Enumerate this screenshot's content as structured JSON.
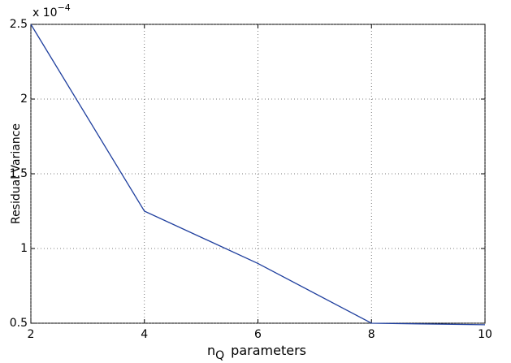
{
  "chart_data": {
    "type": "line",
    "x_label": "n",
    "x_label_subscript": "Q",
    "x_label_suffix": "parameters",
    "y_label": "Residual Variance",
    "y_multiplier_base": "x 10",
    "y_multiplier_exponent": "−4",
    "x": [
      2,
      4,
      6,
      8,
      10
    ],
    "series": [
      {
        "name": "Residual Variance",
        "color": "#1f3f9e",
        "values": [
          2.5,
          1.25,
          0.9,
          0.5,
          0.49
        ]
      }
    ],
    "xlim": [
      2,
      10
    ],
    "xticks": [
      2,
      4,
      6,
      8,
      10
    ],
    "ylim": [
      0.5,
      2.5
    ],
    "yticks": [
      0.5,
      1,
      1.5,
      2,
      2.5
    ],
    "grid": true
  }
}
